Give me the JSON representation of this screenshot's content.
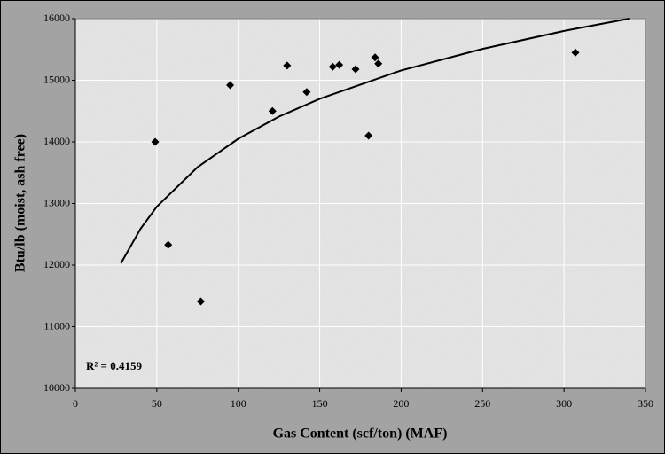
{
  "chart_data": {
    "type": "scatter",
    "x_label": "Gas Content (scf/ton) (MAF)",
    "y_label": "Btu/lb (moist, ash free)",
    "annotation": "R² = 0.4159",
    "x": [
      49,
      57,
      77,
      95,
      121,
      130,
      142,
      158,
      162,
      172,
      180,
      184,
      186,
      307
    ],
    "values": [
      14000,
      12330,
      11410,
      14920,
      14500,
      15240,
      14810,
      15220,
      15250,
      15180,
      14100,
      15370,
      15270,
      15450
    ],
    "color": "#000000",
    "trendline": {
      "x": [
        28,
        40,
        50,
        75,
        100,
        125,
        150,
        200,
        250,
        300,
        340
      ],
      "values": [
        12030,
        12590,
        12950,
        13590,
        14050,
        14410,
        14700,
        15160,
        15510,
        15800,
        16000
      ],
      "color": "#000000"
    },
    "xlim": [
      0,
      350
    ],
    "xticks": [
      0,
      50,
      100,
      150,
      200,
      250,
      300,
      350
    ],
    "ylim": [
      10000,
      16000
    ],
    "yticks": [
      10000,
      11000,
      12000,
      13000,
      14000,
      15000,
      16000
    ],
    "grid": true
  }
}
